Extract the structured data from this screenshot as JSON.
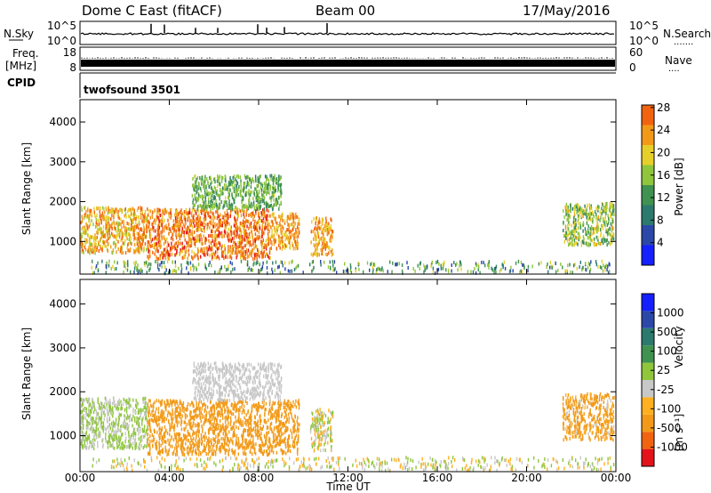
{
  "header": {
    "radar": "Dome C East (fitACF)",
    "beam": "Beam 00",
    "date": "17/May/2016"
  },
  "noise_panel": {
    "left_label": "N.Sky",
    "right_label": "N.Search",
    "right_label_dots": ".......",
    "left_ticks": [
      "10^5",
      "10^0"
    ],
    "right_ticks": [
      "10^5",
      "10^0"
    ]
  },
  "freq_panel": {
    "left_label_1": "Freq.",
    "left_label_2": "[MHz]",
    "right_label": "Nave",
    "right_label_dots": "....",
    "left_ticks": [
      "18",
      "8"
    ],
    "right_ticks": [
      "60",
      "0"
    ]
  },
  "cpid_panel": {
    "label": "CPID",
    "mode": "twofsound 3501"
  },
  "colors": {
    "power": [
      "#1520ff",
      "#2b48a8",
      "#2c7a6e",
      "#3f9250",
      "#8fc63c",
      "#e6cf2a",
      "#f29a18",
      "#f2630f",
      "#e4131b"
    ],
    "velocity": [
      "#e4131b",
      "#f2630f",
      "#f29a18",
      "#ffb020",
      "#c8c8c8",
      "#8fc63c",
      "#3f9250",
      "#2c7a6e",
      "#2b48a8",
      "#1520ff"
    ]
  },
  "chart_data": [
    {
      "type": "heatmap",
      "title": "",
      "quantity": "Power",
      "xlabel": "Time UT",
      "ylabel": "Slant Range [km]",
      "colorbar_label": "Power [dB]",
      "colorbar_ticks": [
        "4",
        "8",
        "12",
        "16",
        "20",
        "24",
        "28"
      ],
      "colorbar_range": [
        0,
        32
      ],
      "x_ticks": [
        "00:00",
        "04:00",
        "08:00",
        "12:00",
        "16:00",
        "20:00",
        "00:00"
      ],
      "xlim_hours": [
        0,
        24
      ],
      "y_ticks": [
        "1000",
        "2000",
        "3000",
        "4000"
      ],
      "ylim": [
        180,
        4560
      ],
      "regions": [
        {
          "t": [
            0.0,
            3.0
          ],
          "r": [
            700,
            1850
          ],
          "values": [
            16,
            28
          ]
        },
        {
          "t": [
            3.0,
            8.5
          ],
          "r": [
            560,
            1800
          ],
          "values": [
            20,
            30
          ]
        },
        {
          "t": [
            5.0,
            9.0
          ],
          "r": [
            1800,
            2650
          ],
          "values": [
            10,
            18
          ]
        },
        {
          "t": [
            8.5,
            9.8
          ],
          "r": [
            800,
            1700
          ],
          "values": [
            18,
            28
          ]
        },
        {
          "t": [
            10.3,
            11.3
          ],
          "r": [
            650,
            1600
          ],
          "values": [
            18,
            28
          ]
        },
        {
          "t": [
            21.6,
            23.9
          ],
          "r": [
            900,
            1950
          ],
          "values": [
            10,
            22
          ]
        },
        {
          "t": [
            0.5,
            23.9
          ],
          "r": [
            200,
            500
          ],
          "values": [
            4,
            20
          ]
        }
      ]
    },
    {
      "type": "heatmap",
      "title": "",
      "quantity": "Velocity",
      "xlabel": "Time UT",
      "ylabel": "Slant Range [km]",
      "unit": "[m s⁻¹]",
      "colorbar_label": "Velocity",
      "colorbar_ticks": [
        "-1000",
        "-500",
        "-100",
        "-25",
        "25",
        "100",
        "500",
        "1000"
      ],
      "colorbar_range": [
        -1250,
        1250
      ],
      "x_ticks": [
        "00:00",
        "04:00",
        "08:00",
        "12:00",
        "16:00",
        "20:00",
        "00:00"
      ],
      "xlim_hours": [
        0,
        24
      ],
      "y_ticks": [
        "1000",
        "2000",
        "3000",
        "4000"
      ],
      "ylim": [
        180,
        4560
      ],
      "regions": [
        {
          "t": [
            0.0,
            3.0
          ],
          "r": [
            700,
            1850
          ],
          "values": [
            -25,
            100
          ]
        },
        {
          "t": [
            3.0,
            9.8
          ],
          "r": [
            560,
            1800
          ],
          "values": [
            -500,
            -100
          ]
        },
        {
          "t": [
            5.0,
            9.0
          ],
          "r": [
            1800,
            2650
          ],
          "values": [
            -25,
            25
          ]
        },
        {
          "t": [
            10.3,
            11.3
          ],
          "r": [
            650,
            1600
          ],
          "values": [
            -100,
            100
          ]
        },
        {
          "t": [
            21.6,
            23.9
          ],
          "r": [
            900,
            1950
          ],
          "values": [
            -500,
            25
          ]
        },
        {
          "t": [
            0.5,
            23.9
          ],
          "r": [
            200,
            500
          ],
          "values": [
            -100,
            100
          ]
        }
      ]
    }
  ]
}
